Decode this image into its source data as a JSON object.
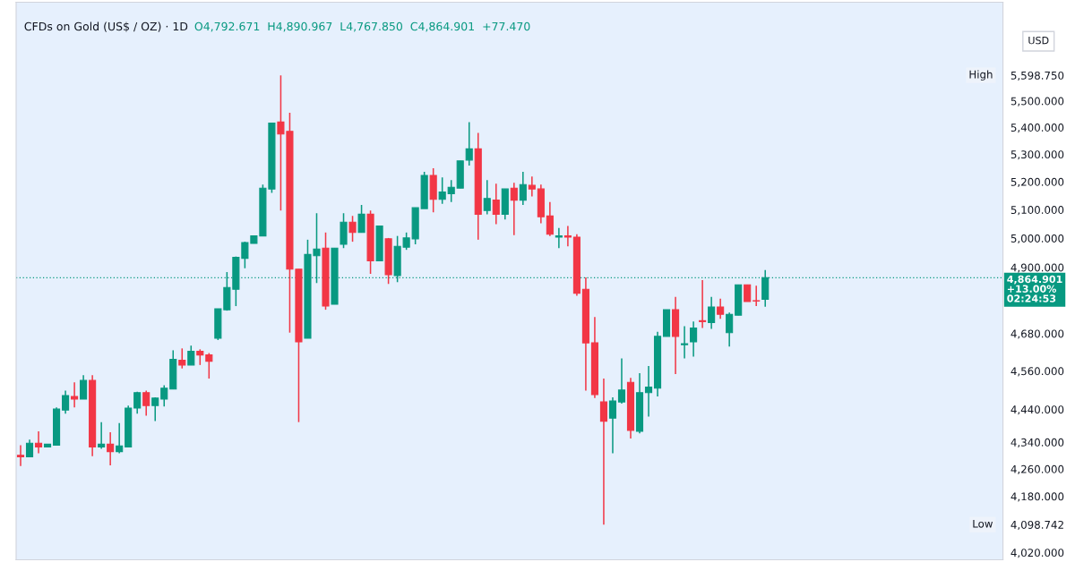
{
  "chart_data": {
    "type": "candlestick",
    "title": "CFDs on Gold (US$ / OZ) · 1D",
    "subtitle": "O4,792.671  H4,890.967  L4,767.850  C4,864.901  +77.470",
    "categories": [
      null,
      null,
      null,
      null,
      null,
      null,
      null,
      null,
      null,
      null,
      null,
      null,
      null,
      null,
      null,
      null,
      null,
      null,
      null,
      null,
      null,
      null,
      null,
      null,
      null,
      null,
      null,
      null,
      null,
      null,
      null,
      null,
      null,
      null,
      null,
      null,
      null,
      null,
      null,
      null,
      null,
      null,
      null,
      null,
      null,
      null,
      null,
      null,
      null,
      null,
      null,
      null,
      null,
      null,
      null,
      null,
      null,
      null,
      null,
      null,
      null,
      null,
      null,
      null,
      null,
      null,
      null,
      null,
      null,
      null,
      null,
      null,
      null,
      null,
      null,
      null,
      null,
      null,
      null,
      null,
      null,
      null,
      null,
      null,
      null,
      null,
      null,
      null,
      null,
      null,
      null,
      null,
      null,
      null,
      null,
      null,
      null,
      null,
      null,
      null,
      null,
      null,
      null,
      null,
      null,
      null,
      null,
      null,
      null,
      null
    ],
    "ohlc": [
      [
        4301,
        4331,
        4269,
        4296
      ],
      [
        4296,
        4348,
        4296,
        4337
      ],
      [
        4337,
        4373,
        4307,
        4326
      ],
      [
        4326,
        4334,
        4326,
        4334
      ],
      [
        4331,
        4446,
        4331,
        4441
      ],
      [
        4438,
        4498,
        4427,
        4483
      ],
      [
        4480,
        4524,
        4446,
        4472
      ],
      [
        4472,
        4547,
        4472,
        4530
      ],
      [
        4530,
        4547,
        4298,
        4326
      ],
      [
        4326,
        4401,
        4320,
        4334
      ],
      [
        4334,
        4370,
        4271,
        4312
      ],
      [
        4312,
        4398,
        4307,
        4329
      ],
      [
        4326,
        4452,
        4326,
        4444
      ],
      [
        4444,
        4495,
        4427,
        4492
      ],
      [
        4492,
        4498,
        4421,
        4452
      ],
      [
        4452,
        4477,
        4404,
        4475
      ],
      [
        4472,
        4515,
        4449,
        4506
      ],
      [
        4503,
        4626,
        4503,
        4597
      ],
      [
        4594,
        4632,
        4568,
        4579
      ],
      [
        4579,
        4641,
        4579,
        4623
      ],
      [
        4623,
        4629,
        4579,
        4611
      ],
      [
        4611,
        4617,
        4536,
        4591
      ],
      [
        4665,
        4761,
        4659,
        4761
      ],
      [
        4758,
        4884,
        4755,
        4832
      ],
      [
        4826,
        4937,
        4770,
        4934
      ],
      [
        4931,
        4988,
        4897,
        4985
      ],
      [
        4982,
        5008,
        4982,
        5008
      ],
      [
        5008,
        5190,
        5008,
        5177
      ],
      [
        5174,
        5416,
        5160,
        5416
      ],
      [
        5420,
        5598.75,
        5097,
        5375
      ],
      [
        5385,
        5455,
        4683,
        4894
      ],
      [
        4894,
        4894,
        4401,
        4653
      ],
      [
        4665,
        4995,
        4665,
        4944
      ],
      [
        4940,
        5088,
        4847,
        4963
      ],
      [
        4966,
        5020,
        4758,
        4770
      ],
      [
        4776,
        4966,
        4776,
        4966
      ],
      [
        4979,
        5088,
        4966,
        5056
      ],
      [
        5056,
        5078,
        4988,
        5020
      ],
      [
        5020,
        5117,
        5020,
        5084
      ],
      [
        5084,
        5097,
        4878,
        4922
      ],
      [
        4922,
        5043,
        4922,
        5043
      ],
      [
        4998,
        5001,
        4844,
        4875
      ],
      [
        4872,
        5008,
        4850,
        4972
      ],
      [
        4969,
        5020,
        4960,
        5001
      ],
      [
        4998,
        5107,
        4979,
        5107
      ],
      [
        5104,
        5236,
        5104,
        5223
      ],
      [
        5223,
        5249,
        5091,
        5137
      ],
      [
        5137,
        5216,
        5121,
        5163
      ],
      [
        5157,
        5206,
        5127,
        5180
      ],
      [
        5177,
        5276,
        5177,
        5276
      ],
      [
        5279,
        5420,
        5259,
        5320
      ],
      [
        5320,
        5379,
        4995,
        5084
      ],
      [
        5097,
        5206,
        5084,
        5140
      ],
      [
        5134,
        5193,
        5049,
        5084
      ],
      [
        5084,
        5174,
        5066,
        5174
      ],
      [
        5177,
        5196,
        5011,
        5134
      ],
      [
        5134,
        5236,
        5117,
        5190
      ],
      [
        5187,
        5219,
        5147,
        5174
      ],
      [
        5174,
        5190,
        5052,
        5075
      ],
      [
        5078,
        5127,
        5008,
        5014
      ],
      [
        5004,
        5036,
        4966,
        5008
      ],
      [
        5008,
        5043,
        4972,
        5004
      ],
      [
        5004,
        5014,
        4804,
        4813
      ],
      [
        4826,
        4866,
        4498,
        4650
      ],
      [
        4650,
        4734,
        4475,
        4486
      ],
      [
        4463,
        4536,
        4098.742,
        4404
      ],
      [
        4413,
        4477,
        4307,
        4466
      ],
      [
        4463,
        4600,
        4458,
        4500
      ],
      [
        4524,
        4538,
        4351,
        4376
      ],
      [
        4373,
        4553,
        4367,
        4492
      ],
      [
        4492,
        4576,
        4418,
        4509
      ],
      [
        4506,
        4686,
        4480,
        4671
      ],
      [
        4671,
        4758,
        4671,
        4758
      ],
      [
        4758,
        4801,
        4550,
        4671
      ],
      [
        4644,
        4704,
        4600,
        4647
      ],
      [
        4653,
        4719,
        4606,
        4698
      ],
      [
        4722,
        4857,
        4698,
        4719
      ],
      [
        4716,
        4801,
        4695,
        4767
      ],
      [
        4767,
        4795,
        4728,
        4743
      ],
      [
        4683,
        4749,
        4638,
        4743
      ],
      [
        4740,
        4841,
        4740,
        4841
      ],
      [
        4841,
        4841,
        4785,
        4785
      ],
      [
        4788,
        4838,
        4770,
        4787
      ],
      [
        4792.671,
        4890.967,
        4767.85,
        4864.901
      ],
      null,
      null,
      null,
      null,
      null,
      null,
      null,
      null,
      null,
      null,
      null,
      null,
      null,
      null,
      null,
      null,
      null,
      null,
      null,
      null,
      null,
      null,
      null,
      null,
      null,
      null
    ],
    "colors": [
      "#f23645",
      "#089981",
      "#f23645",
      "#089981",
      "#089981",
      "#089981",
      "#f23645",
      "#089981",
      "#f23645",
      "#089981",
      "#f23645",
      "#089981",
      "#089981",
      "#089981",
      "#f23645",
      "#089981",
      "#089981",
      "#089981",
      "#f23645",
      "#089981",
      "#f23645",
      "#f23645",
      "#089981",
      "#089981",
      "#089981",
      "#089981",
      "#089981",
      "#089981",
      "#089981",
      "#f23645",
      "#f23645",
      "#f23645",
      "#089981",
      "#089981",
      "#f23645",
      "#089981",
      "#089981",
      "#f23645",
      "#089981",
      "#f23645",
      "#089981",
      "#f23645",
      "#089981",
      "#089981",
      "#089981",
      "#089981",
      "#f23645",
      "#089981",
      "#089981",
      "#089981",
      "#089981",
      "#f23645",
      "#089981",
      "#f23645",
      "#089981",
      "#f23645",
      "#089981",
      "#f23645",
      "#f23645",
      "#f23645",
      "#089981",
      "#f23645",
      "#f23645",
      "#f23645",
      "#f23645",
      "#f23645",
      "#089981",
      "#089981",
      "#f23645",
      "#089981",
      "#089981",
      "#089981",
      "#089981",
      "#f23645",
      "#089981",
      "#089981",
      "#f23645",
      "#089981",
      "#f23645",
      "#089981",
      "#089981",
      "#f23645",
      "#f23645",
      "#089981",
      null,
      null,
      null,
      null,
      null,
      null,
      null,
      null,
      null,
      null,
      null,
      null,
      null,
      null,
      null,
      null,
      null,
      null,
      null,
      null,
      null,
      null,
      null,
      null,
      null,
      null
    ],
    "log": "y",
    "ylim": [
      4000,
      5890
    ],
    "yticks": [
      {
        "value": 4020,
        "label": "4,020.000"
      },
      {
        "value": 4098.742,
        "label": "4,098.742"
      },
      {
        "value": 4180,
        "label": "4,180.000"
      },
      {
        "value": 4260,
        "label": "4,260.000"
      },
      {
        "value": 4340,
        "label": "4,340.000"
      },
      {
        "value": 4440,
        "label": "4,440.000"
      },
      {
        "value": 4560,
        "label": "4,560.000"
      },
      {
        "value": 4680,
        "label": "4,680.000"
      },
      {
        "value": 4900,
        "label": "4,900.000"
      },
      {
        "value": 5000,
        "label": "5,000.000"
      },
      {
        "value": 5100,
        "label": "5,100.000"
      },
      {
        "value": 5200,
        "label": "5,200.000"
      },
      {
        "value": 5300,
        "label": "5,300.000"
      },
      {
        "value": 5400,
        "label": "5,400.000"
      },
      {
        "value": 5500,
        "label": "5,500.000"
      },
      {
        "value": 5598.75,
        "label": "5,598.750"
      }
    ],
    "tick_labels": "y",
    "ref_lines": [
      {
        "axis": "y",
        "value": 4864.901,
        "label": "4,864.901\n+13.00%\n02:24:53",
        "color": "#089981",
        "line_style": "dotted"
      }
    ],
    "annotations": [
      {
        "text": "High",
        "y": 5598.75
      },
      {
        "text": "Low",
        "y": 4098.742
      },
      "USD"
    ]
  }
}
